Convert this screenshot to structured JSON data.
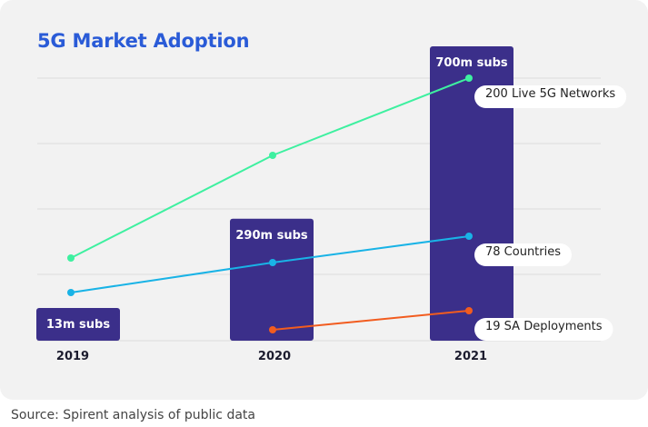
{
  "title": "5G Market Adoption",
  "source": "Source: Spirent analysis of public data",
  "colors": {
    "bar": "#3b2f8a",
    "live_networks": "#3ef0a0",
    "countries": "#19b3e6",
    "sa_deployments": "#f25c1f",
    "grid": "#dcdcdc",
    "title": "#2a5bd7"
  },
  "chart_data": {
    "type": "bar",
    "categories": [
      "2019",
      "2020",
      "2021"
    ],
    "bars": {
      "values": [
        13,
        290,
        700
      ],
      "labels": [
        "13m subs",
        "290m subs",
        "700m subs"
      ]
    },
    "lines": [
      {
        "key": "live_networks",
        "x": [
          "2019",
          "2020",
          "2021"
        ],
        "values": [
          null,
          null,
          200
        ],
        "label": "200 Live 5G Networks"
      },
      {
        "key": "countries",
        "x": [
          "2019",
          "2020",
          "2021"
        ],
        "values": [
          null,
          null,
          78
        ],
        "label": "78 Countries"
      },
      {
        "key": "sa_deployments",
        "x": [
          "2020",
          "2021"
        ],
        "values": [
          null,
          19
        ],
        "label": "19 SA Deployments"
      }
    ],
    "grid": true
  }
}
